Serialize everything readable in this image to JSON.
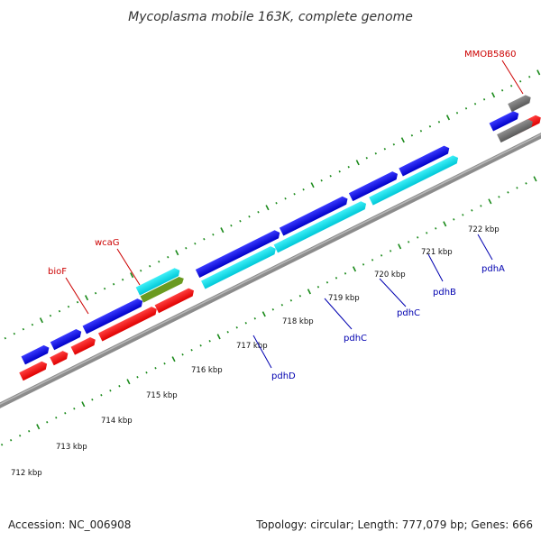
{
  "title": "Mycoplasma mobile 163K, complete genome",
  "footer": {
    "accession": "Accession: NC_006908",
    "summary": "Topology: circular; Length: 777,079 bp; Genes: 666"
  },
  "scale_labels": [
    "712 kbp",
    "713 kbp",
    "714 kbp",
    "715 kbp",
    "716 kbp",
    "717 kbp",
    "718 kbp",
    "719 kbp",
    "720 kbp",
    "721 kbp",
    "722 kbp"
  ],
  "gene_labels": {
    "mmob5860": "MMOB5860",
    "wcag": "wcaG",
    "biof": "bioF",
    "pdha": "pdhA",
    "pdhb": "pdhB",
    "pdhc1": "pdhC",
    "pdhc2": "pdhC",
    "pdhd": "pdhD"
  },
  "colors": {
    "forward_cds": "#1010e0",
    "reverse_cds": "#ff1010",
    "highlight_cds": "#00e0e8",
    "olive_cds": "#6a9a20",
    "gray_feature": "#707070",
    "backbone": "#8c8c8c",
    "tick": "#1a8a1a",
    "label_red": "#cc0000",
    "label_blue": "#0000b0"
  }
}
